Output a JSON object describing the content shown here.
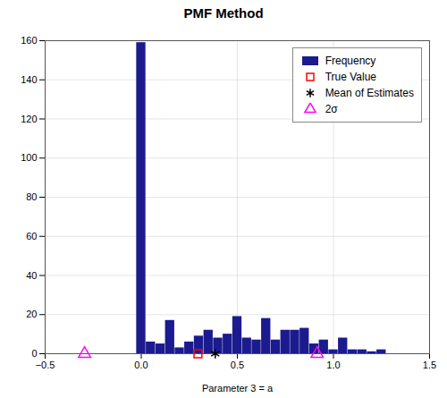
{
  "chart_data": {
    "type": "bar",
    "title": "PMF Method",
    "xlabel": "Parameter 3 = a",
    "xlim": [
      -0.5,
      1.5
    ],
    "xticks": [
      {
        "value": -0.5,
        "label": "−0.5"
      },
      {
        "value": 0.0,
        "label": "0.0"
      },
      {
        "value": 0.5,
        "label": "0.5"
      },
      {
        "value": 1.0,
        "label": "1.0"
      },
      {
        "value": 1.5,
        "label": "1.5"
      }
    ],
    "ylim": [
      0,
      160
    ],
    "yticks": [
      0,
      20,
      40,
      60,
      80,
      100,
      120,
      140,
      160
    ],
    "grid": true,
    "legend": "upper right",
    "series": [
      {
        "name": "Frequency",
        "type": "bar",
        "color": "#1b1b8f",
        "x": [
          0.0,
          0.05,
          0.1,
          0.15,
          0.2,
          0.25,
          0.3,
          0.35,
          0.4,
          0.45,
          0.5,
          0.55,
          0.6,
          0.65,
          0.7,
          0.75,
          0.8,
          0.85,
          0.9,
          0.95,
          1.0,
          1.05,
          1.1,
          1.15,
          1.2,
          1.25
        ],
        "values": [
          159,
          6,
          5,
          17,
          3,
          6,
          9,
          12,
          8,
          10,
          19,
          8,
          7,
          18,
          7,
          12,
          12,
          13,
          5,
          7,
          2,
          8,
          2,
          2,
          1,
          2
        ]
      },
      {
        "name": "True Value",
        "type": "scatter",
        "marker": "square",
        "color": "red",
        "x": [
          0.295
        ],
        "values": [
          0
        ]
      },
      {
        "name": "Mean of Estimates",
        "type": "scatter",
        "marker": "asterisk",
        "color": "black",
        "x": [
          0.385
        ],
        "values": [
          0
        ]
      },
      {
        "name": "2σ",
        "type": "scatter",
        "marker": "triangle",
        "color": "magenta",
        "x": [
          -0.295,
          0.915
        ],
        "values": [
          0,
          0
        ]
      }
    ]
  }
}
